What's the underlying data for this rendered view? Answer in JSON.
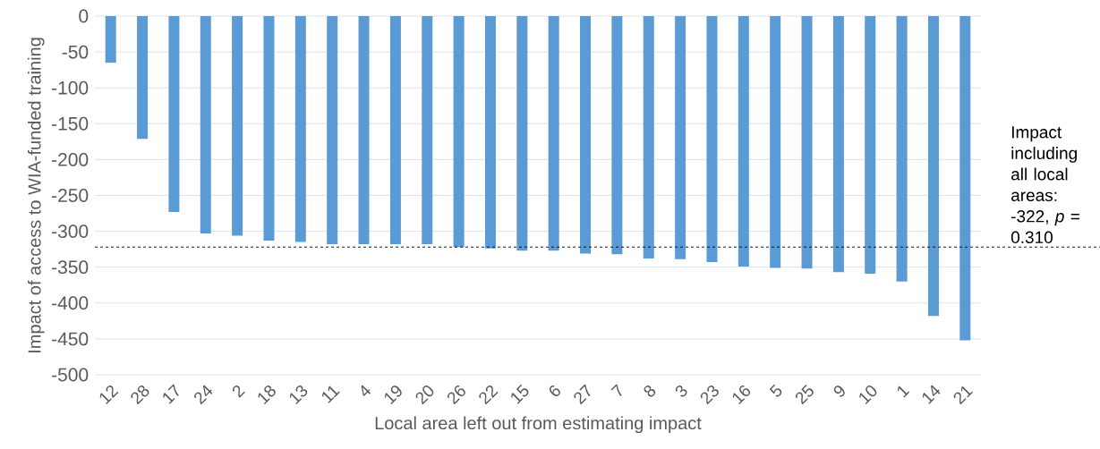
{
  "chart_data": {
    "type": "bar",
    "xlabel": "Local area left out from estimating impact",
    "ylabel": "Impact of access to WIA-funded training",
    "categories": [
      "12",
      "28",
      "17",
      "24",
      "2",
      "18",
      "13",
      "11",
      "4",
      "19",
      "20",
      "26",
      "22",
      "15",
      "6",
      "27",
      "7",
      "8",
      "3",
      "23",
      "16",
      "5",
      "25",
      "9",
      "10",
      "1",
      "14",
      "21"
    ],
    "values": [
      -65,
      -171,
      -273,
      -303,
      -306,
      -313,
      -315,
      -318,
      -318,
      -318,
      -318,
      -322,
      -324,
      -327,
      -327,
      -331,
      -332,
      -338,
      -339,
      -343,
      -349,
      -351,
      -352,
      -357,
      -359,
      -370,
      -418,
      -452
    ],
    "color": "#5b9bd5",
    "ylim": [
      -500,
      0
    ],
    "yticks": [
      -500,
      -450,
      -400,
      -350,
      -300,
      -250,
      -200,
      -150,
      -100,
      -50,
      0
    ],
    "grid": "y",
    "ref_lines": [
      {
        "axis": "y",
        "value": -322,
        "label": "Impact including all local areas: -322, *p* = 0.310",
        "color": "#000000",
        "line_style": "dashed"
      }
    ]
  }
}
